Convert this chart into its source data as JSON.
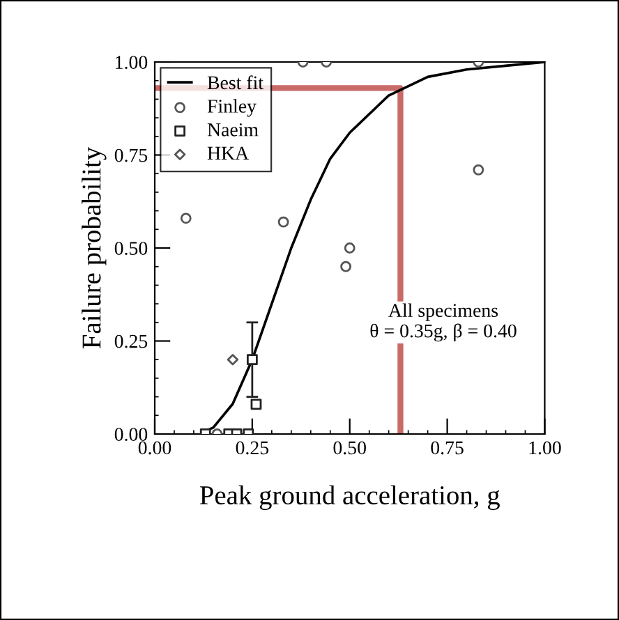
{
  "chart_data": {
    "type": "scatter",
    "xlabel": "Peak ground acceleration, g",
    "ylabel": "Failure probability",
    "xlim": [
      0,
      1
    ],
    "ylim": [
      0,
      1
    ],
    "xticks": [
      {
        "value": 0,
        "label": "0.00"
      },
      0.25,
      {
        "value": 0.5,
        "label": "0.50"
      },
      0.75,
      {
        "value": 1,
        "label": "1.00"
      }
    ],
    "yticks": [
      {
        "value": 0,
        "label": "0.00"
      },
      0.25,
      {
        "value": 0.5,
        "label": "0.50"
      },
      0.75,
      {
        "value": 1,
        "label": "1.00"
      }
    ],
    "legend": "top left",
    "grid": false,
    "annotations": [
      "All specimens\nθ = 0.35g, β = 0.40"
    ],
    "series": [
      {
        "name": "Best fit",
        "type": "line",
        "color": "#000000",
        "marker": "none",
        "x": [
          0.12,
          0.15,
          0.2,
          0.25,
          0.3,
          0.35,
          0.4,
          0.45,
          0.5,
          0.6,
          0.7,
          0.8,
          0.9,
          1.0
        ],
        "values": [
          0.004,
          0.017,
          0.081,
          0.2,
          0.35,
          0.5,
          0.63,
          0.74,
          0.81,
          0.91,
          0.96,
          0.98,
          0.99,
          1.0
        ]
      },
      {
        "name": "Finley",
        "color": "#555555",
        "marker": "circle",
        "x": [
          0.38,
          0.44,
          0.83,
          0.83,
          0.5,
          0.49,
          0.33,
          0.08,
          0.16
        ],
        "values": [
          1.0,
          1.0,
          1.0,
          0.71,
          0.5,
          0.45,
          0.57,
          0.58,
          0.0
        ]
      },
      {
        "name": "Naeim",
        "color": "#222222",
        "marker": "square",
        "x": [
          0.25,
          0.26,
          0.13,
          0.19,
          0.21,
          0.24
        ],
        "values": [
          0.2,
          0.08,
          0.0,
          0.0,
          0.0,
          0.0
        ],
        "errors": [
          [
            0.1,
            0.3
          ],
          null,
          null,
          null,
          null,
          null
        ]
      },
      {
        "name": "HKA",
        "color": "#555555",
        "marker": "diamond",
        "x": [
          0.2
        ],
        "values": [
          0.2
        ]
      },
      {
        "type": "line",
        "color": "#c0504d",
        "marker": "none",
        "x": [
          0.0,
          0.63,
          0.63
        ],
        "values": [
          0.93,
          0.93,
          0.0
        ]
      }
    ]
  }
}
